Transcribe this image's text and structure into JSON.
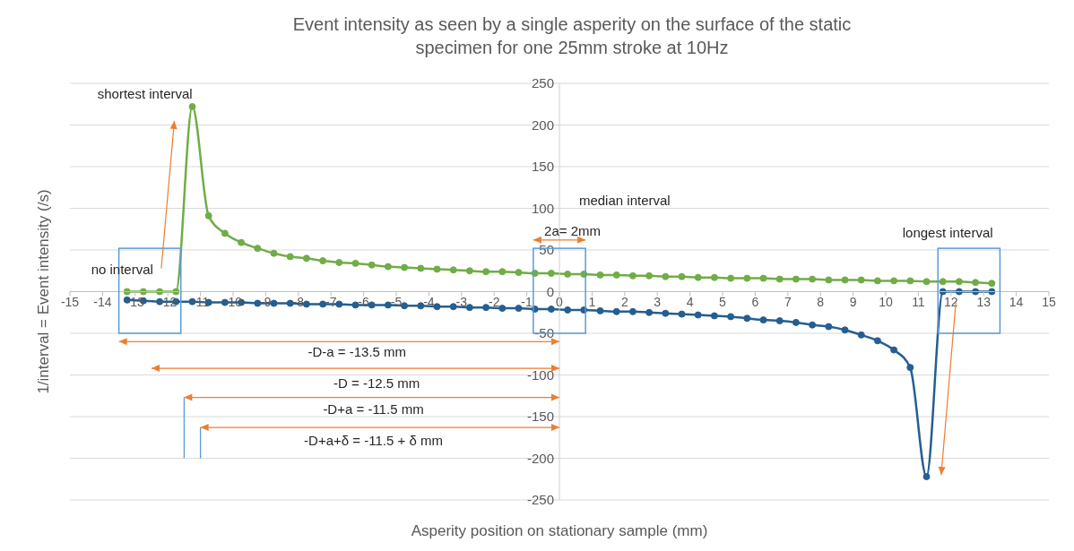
{
  "chart_data": {
    "type": "line",
    "title": "Event intensity as seen by a single asperity on the surface of the static specimen for one 25mm stroke at 10Hz",
    "xlabel": "Asperity position on stationary sample (mm)",
    "ylabel": "1/interval = Event intensity (/s)",
    "x": [
      -13.25,
      -12.75,
      -12.25,
      -11.75,
      -11.25,
      -10.75,
      -10.25,
      -9.75,
      -9.25,
      -8.75,
      -8.25,
      -7.75,
      -7.25,
      -6.75,
      -6.25,
      -5.75,
      -5.25,
      -4.75,
      -4.25,
      -3.75,
      -3.25,
      -2.75,
      -2.25,
      -1.75,
      -1.25,
      -0.75,
      -0.25,
      0.25,
      0.75,
      1.25,
      1.75,
      2.25,
      2.75,
      3.25,
      3.75,
      4.25,
      4.75,
      5.25,
      5.75,
      6.25,
      6.75,
      7.25,
      7.75,
      8.25,
      8.75,
      9.25,
      9.75,
      10.25,
      10.75,
      11.25,
      11.75,
      12.25,
      12.75,
      13.25
    ],
    "series": [
      {
        "color": "#70ad47",
        "values": [
          0,
          0,
          0,
          0,
          222,
          91,
          70,
          59,
          52,
          46,
          42,
          40,
          37,
          35,
          34,
          32,
          30,
          29,
          28,
          27,
          26,
          25,
          24,
          24,
          23,
          22,
          22,
          21,
          21,
          20,
          20,
          19,
          19,
          18,
          18,
          17,
          17,
          16,
          16,
          16,
          15,
          15,
          15,
          14,
          14,
          14,
          13,
          13,
          13,
          12,
          12,
          12,
          11,
          10
        ]
      },
      {
        "color": "#255e91",
        "values": [
          -10,
          -11,
          -12,
          -12,
          -12,
          -13,
          -13,
          -13,
          -14,
          -14,
          -14,
          -15,
          -15,
          -15,
          -16,
          -16,
          -16,
          -17,
          -17,
          -18,
          -18,
          -19,
          -19,
          -20,
          -20,
          -21,
          -21,
          -22,
          -22,
          -23,
          -24,
          -24,
          -25,
          -26,
          -27,
          -28,
          -29,
          -30,
          -32,
          -34,
          -35,
          -37,
          -40,
          -42,
          -46,
          -52,
          -59,
          -70,
          -91,
          -222,
          0,
          0,
          0,
          0
        ]
      }
    ],
    "xlim": [
      -15,
      15
    ],
    "xticks": [
      -15,
      -14,
      -13,
      -12,
      -11,
      -10,
      -9,
      -8,
      -7,
      -6,
      -5,
      -4,
      -3,
      -2,
      -1,
      0,
      1,
      2,
      3,
      4,
      5,
      6,
      7,
      8,
      9,
      10,
      11,
      12,
      13,
      14,
      15
    ],
    "ylim": [
      -250,
      250
    ],
    "yticks": [
      -250,
      -200,
      -150,
      -100,
      -50,
      0,
      50,
      100,
      150,
      200,
      250
    ],
    "grid": "y",
    "marker": "circle",
    "line_style": "solid",
    "legend": false,
    "annotations": [
      "shortest interval",
      "no interval",
      "median interval",
      "2a= 2mm",
      "longest interval",
      "-D-a = -13.5 mm",
      "-D = -12.5 mm",
      "-D+a = -11.5 mm",
      "-D+a+δ = -11.5 + δ mm"
    ]
  }
}
